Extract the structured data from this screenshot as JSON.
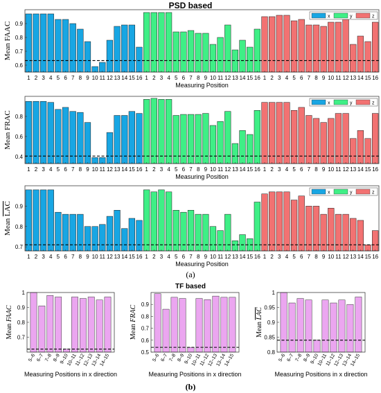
{
  "psd_title": "PSD based",
  "tf_title": "TF based",
  "label_a": "(a)",
  "label_b": "(b)",
  "colors": {
    "x": "#18a6e3",
    "y": "#3fef86",
    "z": "#f27272",
    "tf": "#eba6f0",
    "threshold": "#000000"
  },
  "chart_data": [
    {
      "type": "bar",
      "ylabel": "Mean FAAC",
      "xlabel": "Measuring Position",
      "categories": [
        "1",
        "2",
        "3",
        "4",
        "5",
        "6",
        "7",
        "8",
        "9",
        "10",
        "11",
        "12",
        "13",
        "14",
        "15",
        "16"
      ],
      "ylim": [
        0.55,
        1.0
      ],
      "yticks": [
        0.6,
        0.7,
        0.8,
        0.9
      ],
      "threshold": 0.633,
      "legend": [
        "x",
        "y",
        "z"
      ],
      "series": [
        {
          "name": "x",
          "values": [
            0.97,
            0.97,
            0.97,
            0.97,
            0.93,
            0.93,
            0.9,
            0.86,
            0.77,
            0.59,
            0.62,
            0.78,
            0.88,
            0.89,
            0.89,
            0.73
          ]
        },
        {
          "name": "y",
          "values": [
            0.98,
            0.98,
            0.98,
            0.98,
            0.84,
            0.84,
            0.85,
            0.83,
            0.83,
            0.75,
            0.8,
            0.89,
            0.71,
            0.78,
            0.73,
            0.86
          ]
        },
        {
          "name": "z",
          "values": [
            0.95,
            0.95,
            0.96,
            0.96,
            0.92,
            0.93,
            0.89,
            0.89,
            0.88,
            0.91,
            0.91,
            0.93,
            0.75,
            0.81,
            0.77,
            0.91
          ]
        }
      ]
    },
    {
      "type": "bar",
      "ylabel": "Mean FRAC",
      "xlabel": "Measuring Position",
      "categories": [
        "1",
        "2",
        "3",
        "4",
        "5",
        "6",
        "7",
        "8",
        "9",
        "10",
        "11",
        "12",
        "13",
        "14",
        "15",
        "16"
      ],
      "ylim": [
        0.33,
        1.0
      ],
      "yticks": [
        0.4,
        0.6,
        0.8
      ],
      "threshold": 0.405,
      "legend": [
        "x",
        "y",
        "z"
      ],
      "series": [
        {
          "name": "x",
          "values": [
            0.95,
            0.95,
            0.95,
            0.94,
            0.87,
            0.89,
            0.85,
            0.84,
            0.74,
            0.39,
            0.39,
            0.64,
            0.81,
            0.81,
            0.85,
            0.83
          ]
        },
        {
          "name": "y",
          "values": [
            0.97,
            0.98,
            0.97,
            0.97,
            0.81,
            0.82,
            0.82,
            0.82,
            0.83,
            0.71,
            0.75,
            0.85,
            0.53,
            0.66,
            0.62,
            0.86
          ]
        },
        {
          "name": "z",
          "values": [
            0.94,
            0.94,
            0.94,
            0.94,
            0.86,
            0.89,
            0.81,
            0.78,
            0.74,
            0.78,
            0.83,
            0.83,
            0.58,
            0.66,
            0.58,
            0.83
          ]
        }
      ]
    },
    {
      "type": "bar",
      "ylabel": "Mean LAC",
      "xlabel": "Measuring Position",
      "categories": [
        "1",
        "2",
        "3",
        "4",
        "5",
        "6",
        "7",
        "8",
        "9",
        "10",
        "11",
        "12",
        "13",
        "14",
        "15",
        "16"
      ],
      "ylim": [
        0.68,
        1.0
      ],
      "yticks": [
        0.7,
        0.8,
        0.9
      ],
      "threshold": 0.71,
      "legend": [
        "x",
        "y",
        "z"
      ],
      "series": [
        {
          "name": "x",
          "values": [
            0.98,
            0.98,
            0.98,
            0.98,
            0.87,
            0.86,
            0.86,
            0.86,
            0.8,
            0.8,
            0.81,
            0.85,
            0.88,
            0.79,
            0.84,
            0.83
          ]
        },
        {
          "name": "y",
          "values": [
            0.98,
            0.97,
            0.98,
            0.97,
            0.88,
            0.87,
            0.88,
            0.86,
            0.86,
            0.8,
            0.78,
            0.86,
            0.73,
            0.76,
            0.74,
            0.92
          ]
        },
        {
          "name": "z",
          "values": [
            0.96,
            0.97,
            0.97,
            0.97,
            0.93,
            0.95,
            0.9,
            0.9,
            0.86,
            0.89,
            0.86,
            0.86,
            0.84,
            0.83,
            0.71,
            0.78
          ]
        }
      ]
    },
    {
      "type": "bar",
      "ylabel": "Mean FAAC",
      "xlabel": "Measuring Positions in x direction",
      "categories": [
        "5–6",
        "6–7",
        "7–8",
        "8–9",
        "9–10",
        "10–11",
        "11–12",
        "12–13",
        "13–14",
        "14–15"
      ],
      "ylim": [
        0.6,
        1.0
      ],
      "yticks": [
        0.7,
        0.8,
        0.9,
        1.0
      ],
      "threshold": 0.62,
      "series": [
        {
          "name": "tf",
          "values": [
            1.0,
            0.91,
            0.98,
            0.97,
            0.62,
            0.97,
            0.96,
            0.97,
            0.95,
            0.97
          ]
        }
      ]
    },
    {
      "type": "bar",
      "ylabel": "Mean FRAC",
      "xlabel": "Measuring Positions in x direction",
      "categories": [
        "5–6",
        "6–7",
        "7–8",
        "8–9",
        "9–10",
        "10–11",
        "11–12",
        "12–13",
        "13–14",
        "14–15"
      ],
      "ylim": [
        0.5,
        1.0
      ],
      "yticks": [
        0.5,
        0.6,
        0.7,
        0.8,
        0.9
      ],
      "threshold": 0.54,
      "series": [
        {
          "name": "tf",
          "values": [
            0.99,
            0.86,
            0.96,
            0.95,
            0.54,
            0.95,
            0.94,
            0.97,
            0.96,
            0.96
          ]
        }
      ]
    },
    {
      "type": "bar",
      "ylabel": "Mean LAC",
      "xlabel": "Measuring Positions in x direction",
      "categories": [
        "5–6",
        "6–7",
        "7–8",
        "8–9",
        "9–10",
        "10–11",
        "11–12",
        "12–13",
        "13–14",
        "14–15"
      ],
      "ylim": [
        0.8,
        1.0
      ],
      "yticks": [
        0.8,
        0.85,
        0.9,
        0.95,
        1.0
      ],
      "threshold": 0.84,
      "series": [
        {
          "name": "tf",
          "values": [
            1.0,
            0.965,
            0.98,
            0.975,
            0.84,
            0.975,
            0.965,
            0.975,
            0.96,
            0.985
          ]
        }
      ]
    }
  ]
}
